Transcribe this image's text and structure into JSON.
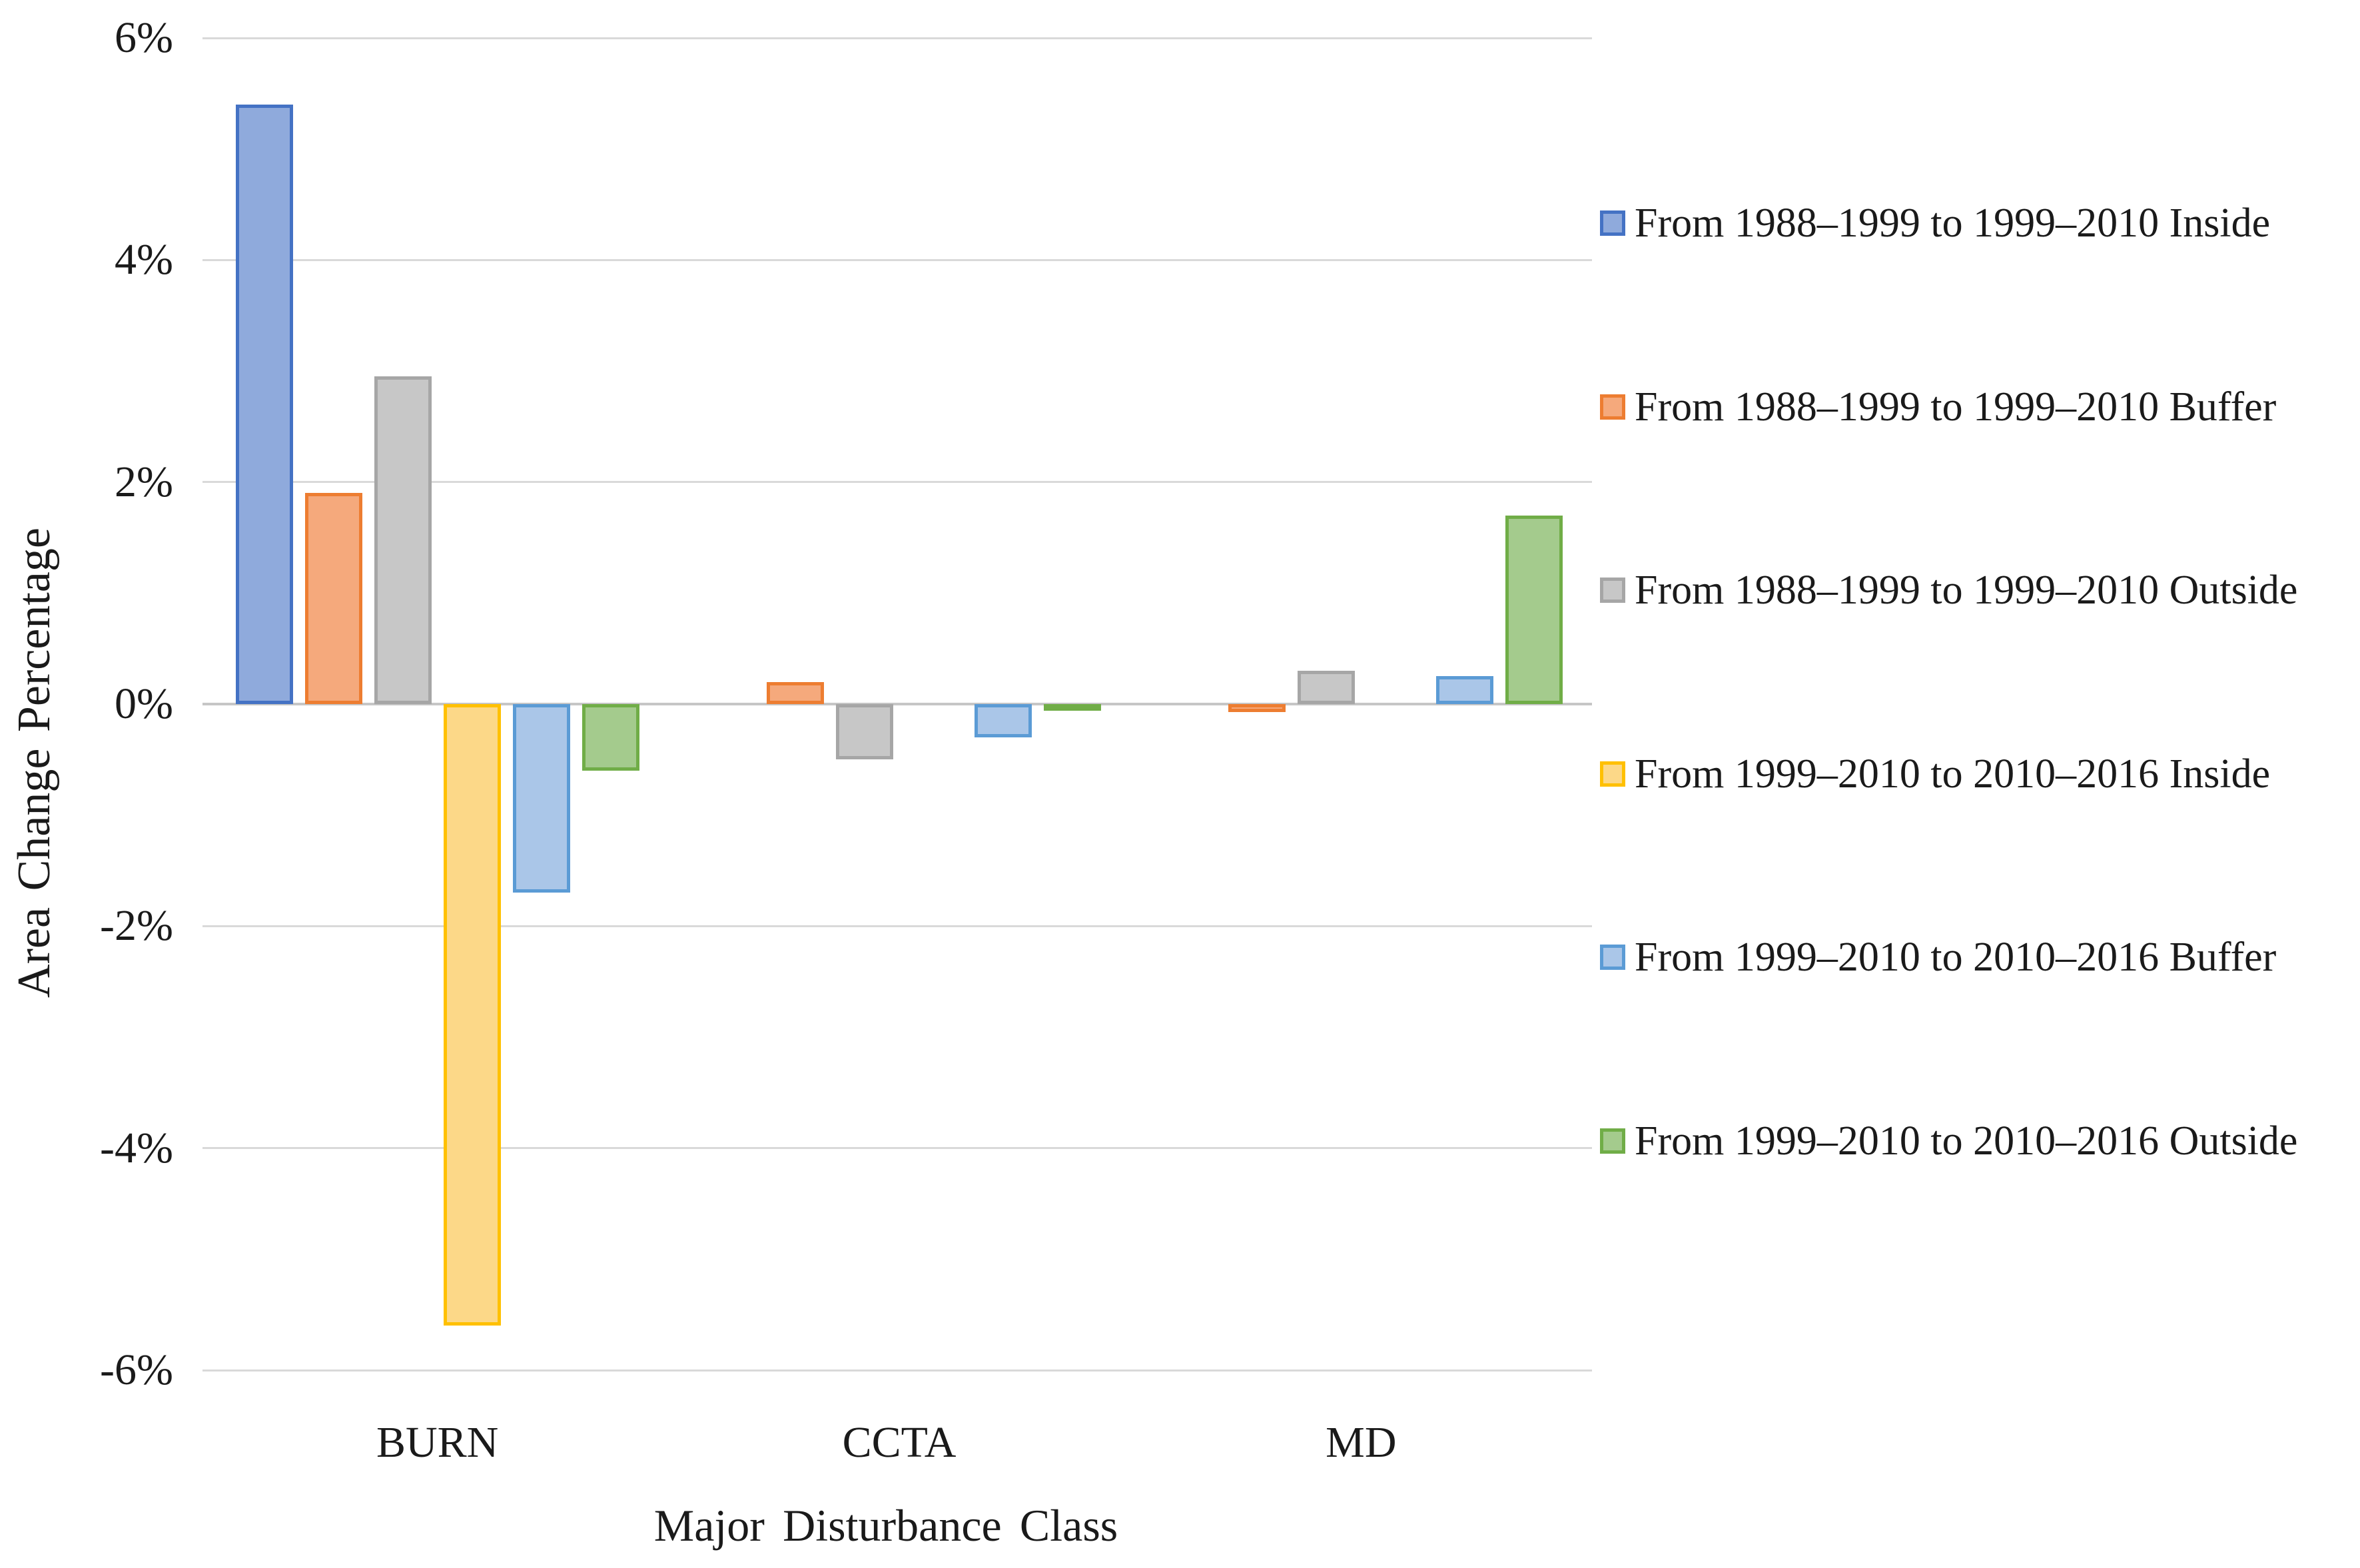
{
  "chart_data": {
    "type": "bar",
    "title": "",
    "xlabel": "Major Disturbance Class",
    "ylabel": "Area Change Percentage",
    "categories": [
      "BURN",
      "CCTA",
      "MD"
    ],
    "series": [
      {
        "name": "From 1988–1999 to 1999–2010 Inside",
        "values": [
          5.4,
          0,
          0
        ],
        "fill": "#8FAADC",
        "border": "#4472C4"
      },
      {
        "name": "From 1988–1999 to 1999–2010 Buffer",
        "values": [
          1.9,
          0.2,
          -0.07
        ],
        "fill": "#F5A97C",
        "border": "#ED7D31"
      },
      {
        "name": "From 1988–1999 to 1999–2010 Outside",
        "values": [
          2.95,
          -0.5,
          0.3
        ],
        "fill": "#C7C7C7",
        "border": "#A6A6A6"
      },
      {
        "name": "From 1999–2010 to 2010–2016 Inside",
        "values": [
          -5.6,
          0,
          0
        ],
        "fill": "#FCD888",
        "border": "#FFC000"
      },
      {
        "name": "From 1999–2010 to 2010–2016 Buffer",
        "values": [
          -1.7,
          -0.3,
          0.25
        ],
        "fill": "#AAC6E8",
        "border": "#5B9BD5"
      },
      {
        "name": "From 1999–2010 to 2010–2016 Outside",
        "values": [
          -0.6,
          -0.05,
          1.7
        ],
        "fill": "#A4CB8D",
        "border": "#70AD47"
      }
    ],
    "y_ticks": [
      {
        "value": 6,
        "label": "6%"
      },
      {
        "value": 4,
        "label": "4%"
      },
      {
        "value": 2,
        "label": "2%"
      },
      {
        "value": 0,
        "label": "0%"
      },
      {
        "value": -2,
        "label": "-2%"
      },
      {
        "value": -4,
        "label": "-4%"
      },
      {
        "value": -6,
        "label": "-6%"
      }
    ],
    "ylim": [
      -6,
      6
    ],
    "grid": true,
    "legend_position": "right"
  },
  "colors": {
    "background": "#FFFFFF",
    "gridline": "#D9D9D9",
    "zero_axis": "#C6C6C6",
    "text": "#1A1A1A"
  }
}
